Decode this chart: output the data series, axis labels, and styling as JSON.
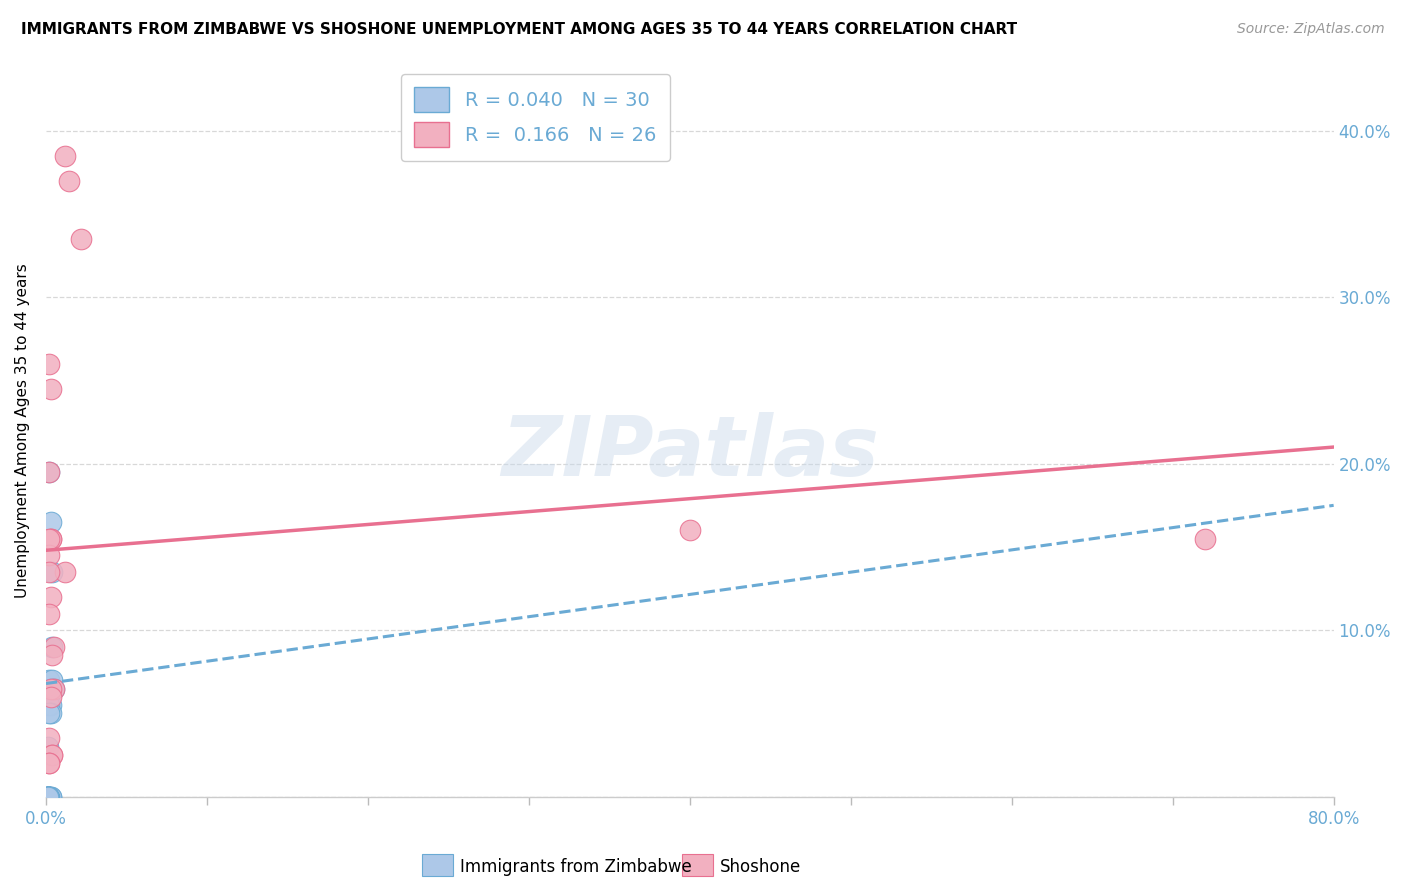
{
  "title": "IMMIGRANTS FROM ZIMBABWE VS SHOSHONE UNEMPLOYMENT AMONG AGES 35 TO 44 YEARS CORRELATION CHART",
  "source": "Source: ZipAtlas.com",
  "ylabel": "Unemployment Among Ages 35 to 44 years",
  "x_tick_labels": [
    "0.0%",
    "",
    "",
    "",
    "",
    "",
    "",
    "",
    "80.0%"
  ],
  "x_tick_values": [
    0.0,
    0.1,
    0.2,
    0.3,
    0.4,
    0.5,
    0.6,
    0.7,
    0.8
  ],
  "y_tick_labels_right": [
    "",
    "10.0%",
    "20.0%",
    "30.0%",
    "40.0%"
  ],
  "y_tick_values": [
    0.0,
    0.1,
    0.2,
    0.3,
    0.4
  ],
  "xlim": [
    0.0,
    0.8
  ],
  "ylim": [
    0.0,
    0.44
  ],
  "legend_label_blue": "Immigrants from Zimbabwe",
  "legend_label_pink": "Shoshone",
  "legend_r_blue": "R = 0.040",
  "legend_n_blue": "N = 30",
  "legend_r_pink": "R =  0.166",
  "legend_n_pink": "N = 26",
  "blue_color": "#adc8e8",
  "blue_line": "#6aaad4",
  "pink_color": "#f2b0c0",
  "pink_line": "#e87090",
  "blue_scatter_x": [
    0.002,
    0.003,
    0.004,
    0.001,
    0.001,
    0.002,
    0.003,
    0.003,
    0.002,
    0.001,
    0.001,
    0.001,
    0.001,
    0.001,
    0.001,
    0.001,
    0.001,
    0.001,
    0.001,
    0.002,
    0.004,
    0.005,
    0.003,
    0.004,
    0.003,
    0.002,
    0.003,
    0.002,
    0.001,
    0.001
  ],
  "blue_scatter_y": [
    0.195,
    0.165,
    0.135,
    0.03,
    0.0,
    0.0,
    0.0,
    0.0,
    0.0,
    0.0,
    0.0,
    0.0,
    0.0,
    0.0,
    0.0,
    0.0,
    0.0,
    0.0,
    0.0,
    0.07,
    0.07,
    0.065,
    0.055,
    0.09,
    0.065,
    0.055,
    0.05,
    0.05,
    0.0,
    0.0
  ],
  "pink_scatter_x": [
    0.012,
    0.014,
    0.022,
    0.002,
    0.003,
    0.002,
    0.003,
    0.003,
    0.002,
    0.012,
    0.003,
    0.002,
    0.005,
    0.004,
    0.005,
    0.003,
    0.002,
    0.002,
    0.4,
    0.72,
    0.003,
    0.002,
    0.004,
    0.004,
    0.002,
    0.002
  ],
  "pink_scatter_y": [
    0.385,
    0.37,
    0.335,
    0.26,
    0.245,
    0.195,
    0.155,
    0.155,
    0.145,
    0.135,
    0.12,
    0.11,
    0.09,
    0.085,
    0.065,
    0.065,
    0.135,
    0.155,
    0.16,
    0.155,
    0.06,
    0.035,
    0.025,
    0.025,
    0.02,
    0.02
  ],
  "watermark": "ZIPatlas",
  "grid_color": "#d8d8d8",
  "trendline_blue_x0": 0.0,
  "trendline_blue_y0": 0.068,
  "trendline_blue_x1": 0.8,
  "trendline_blue_y1": 0.175,
  "trendline_pink_x0": 0.0,
  "trendline_pink_y0": 0.148,
  "trendline_pink_x1": 0.8,
  "trendline_pink_y1": 0.21
}
